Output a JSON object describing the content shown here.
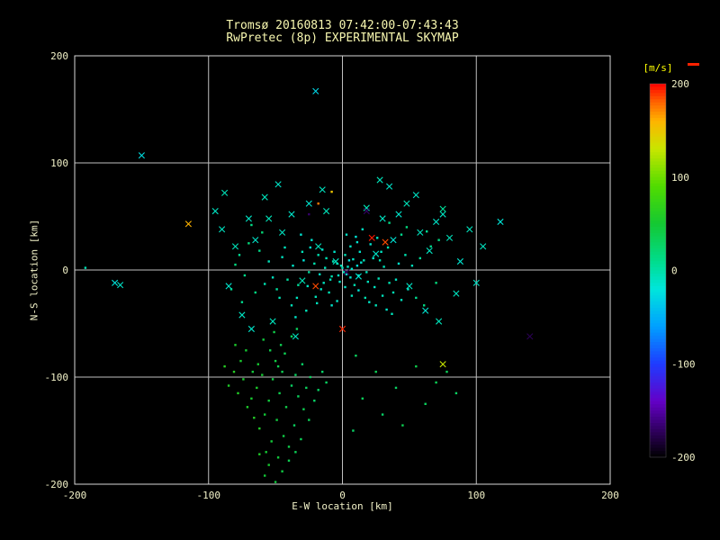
{
  "colors": {
    "background": "#000000",
    "frame": "#d9d9d9",
    "grid": "#bfbfbf",
    "text": "#f2f2c8",
    "title": "#f8f8b0",
    "unit_label": "#ffff00",
    "red_marker": "#ff2200"
  },
  "chart_data": {
    "type": "scatter",
    "title": "Tromsø 20160813 07:42:00-07:43:43",
    "subtitle": "RwPretec (8p) EXPERIMENTAL SKYMAP",
    "xlabel": "E-W location [km]",
    "ylabel": "N-S location [km]",
    "xlim": [
      -200,
      200
    ],
    "ylim": [
      -200,
      200
    ],
    "xticks": [
      -200,
      -100,
      0,
      100,
      200
    ],
    "yticks": [
      -200,
      -100,
      0,
      100,
      200
    ],
    "grid": true,
    "marker_codes": {
      "0": "dot",
      "1": "cross"
    },
    "colorbar": {
      "label": "[m/s]",
      "ticks": [
        200,
        100,
        0,
        -100,
        -200
      ],
      "vmin": -200,
      "vmax": 200,
      "stops": [
        [
          -200,
          "#000000"
        ],
        [
          -140,
          "#6400c8"
        ],
        [
          -100,
          "#1e3cff"
        ],
        [
          -60,
          "#00a0ff"
        ],
        [
          -20,
          "#00e6dc"
        ],
        [
          10,
          "#00dc8c"
        ],
        [
          50,
          "#14c832"
        ],
        [
          90,
          "#50dc00"
        ],
        [
          130,
          "#c8e600"
        ],
        [
          160,
          "#ffb400"
        ],
        [
          180,
          "#ff6400"
        ],
        [
          200,
          "#ff0000"
        ]
      ]
    },
    "points": [
      [
        0,
        2,
        -8,
        0
      ],
      [
        3,
        -4,
        -12,
        0
      ],
      [
        -4,
        6,
        -5,
        0
      ],
      [
        7,
        1,
        -15,
        0
      ],
      [
        -8,
        -6,
        -3,
        0
      ],
      [
        11,
        4,
        -18,
        0
      ],
      [
        -13,
        2,
        -7,
        0
      ],
      [
        5,
        9,
        -22,
        0
      ],
      [
        -2,
        -11,
        -9,
        0
      ],
      [
        9,
        -14,
        -4,
        0
      ],
      [
        14,
        7,
        -16,
        0
      ],
      [
        -17,
        -4,
        -11,
        0
      ],
      [
        2,
        14,
        -6,
        0
      ],
      [
        -6,
        17,
        -13,
        0
      ],
      [
        18,
        -2,
        -8,
        0
      ],
      [
        -21,
        6,
        -2,
        0
      ],
      [
        12,
        -19,
        -17,
        0
      ],
      [
        -10,
        -21,
        -5,
        0
      ],
      [
        23,
        11,
        -12,
        0
      ],
      [
        -25,
        -2,
        3,
        0
      ],
      [
        6,
        22,
        -9,
        0
      ],
      [
        -15,
        19,
        -14,
        0
      ],
      [
        27,
        -8,
        -6,
        0
      ],
      [
        -29,
        9,
        -19,
        0
      ],
      [
        17,
        -26,
        -3,
        0
      ],
      [
        -4,
        -29,
        -11,
        0
      ],
      [
        31,
        3,
        -7,
        0
      ],
      [
        -33,
        -14,
        5,
        0
      ],
      [
        21,
        24,
        -15,
        0
      ],
      [
        -19,
        -31,
        -8,
        0
      ],
      [
        35,
        -12,
        -4,
        0
      ],
      [
        -37,
        4,
        -13,
        0
      ],
      [
        10,
        31,
        -18,
        0
      ],
      [
        25,
        -33,
        -6,
        0
      ],
      [
        -41,
        -9,
        2,
        0
      ],
      [
        29,
        17,
        -10,
        0
      ],
      [
        -23,
        28,
        -16,
        0
      ],
      [
        38,
        -21,
        -5,
        0
      ],
      [
        -45,
        12,
        -9,
        0
      ],
      [
        33,
        -37,
        -12,
        0
      ],
      [
        -27,
        -38,
        -7,
        0
      ],
      [
        42,
        6,
        -14,
        0
      ],
      [
        -49,
        -18,
        4,
        0
      ],
      [
        15,
        38,
        -11,
        0
      ],
      [
        44,
        -28,
        -8,
        0
      ],
      [
        -31,
        33,
        -15,
        0
      ],
      [
        47,
        14,
        -3,
        0
      ],
      [
        -52,
        -7,
        -10,
        0
      ],
      [
        37,
        -41,
        -6,
        0
      ],
      [
        -35,
        -44,
        -13,
        0
      ],
      [
        1,
        -2,
        -9,
        0
      ],
      [
        -1,
        4,
        -6,
        0
      ],
      [
        4,
        3,
        -11,
        0
      ],
      [
        -3,
        -5,
        -8,
        0
      ],
      [
        6,
        -7,
        -14,
        0
      ],
      [
        -7,
        8,
        -4,
        0
      ],
      [
        8,
        10,
        -12,
        0
      ],
      [
        -9,
        -9,
        -7,
        0
      ],
      [
        12,
        -5,
        -10,
        0
      ],
      [
        -12,
        11,
        -5,
        0
      ],
      [
        2,
        -16,
        -13,
        0
      ],
      [
        -14,
        -12,
        -9,
        0
      ],
      [
        16,
        9,
        -6,
        0
      ],
      [
        -16,
        -18,
        -11,
        0
      ],
      [
        19,
        -11,
        -8,
        0
      ],
      [
        -18,
        14,
        -3,
        0
      ],
      [
        13,
        17,
        -12,
        0
      ],
      [
        -20,
        -25,
        -6,
        0
      ],
      [
        24,
        -16,
        -9,
        0
      ],
      [
        -24,
        21,
        -14,
        0
      ],
      [
        7,
        -24,
        -7,
        0
      ],
      [
        -26,
        -15,
        -10,
        0
      ],
      [
        28,
        9,
        -5,
        0
      ],
      [
        -8,
        -33,
        -12,
        0
      ],
      [
        30,
        -24,
        -8,
        0
      ],
      [
        -30,
        17,
        -6,
        0
      ],
      [
        20,
        -30,
        -11,
        0
      ],
      [
        -34,
        -26,
        -9,
        0
      ],
      [
        34,
        21,
        -4,
        0
      ],
      [
        -38,
        -33,
        -7,
        0
      ],
      [
        11,
        26,
        -15,
        0
      ],
      [
        -43,
        21,
        -8,
        0
      ],
      [
        40,
        -9,
        -11,
        0
      ],
      [
        -47,
        -26,
        -5,
        0
      ],
      [
        26,
        30,
        -9,
        0
      ],
      [
        3,
        33,
        -13,
        0
      ],
      [
        -55,
        8,
        -7,
        0
      ],
      [
        49,
        -18,
        -10,
        0
      ],
      [
        -58,
        -13,
        -4,
        0
      ],
      [
        52,
        4,
        -8,
        0
      ],
      [
        -62,
        18,
        12,
        0
      ],
      [
        55,
        -26,
        8,
        0
      ],
      [
        -65,
        -21,
        15,
        0
      ],
      [
        58,
        11,
        6,
        0
      ],
      [
        -70,
        25,
        18,
        0
      ],
      [
        44,
        33,
        9,
        0
      ],
      [
        -73,
        -5,
        11,
        0
      ],
      [
        61,
        -33,
        14,
        0
      ],
      [
        -77,
        14,
        7,
        0
      ],
      [
        48,
        40,
        16,
        0
      ],
      [
        -60,
        35,
        20,
        0
      ],
      [
        66,
        22,
        10,
        0
      ],
      [
        -68,
        42,
        13,
        0
      ],
      [
        70,
        -12,
        17,
        0
      ],
      [
        -75,
        -30,
        9,
        0
      ],
      [
        35,
        44,
        12,
        0
      ],
      [
        -80,
        5,
        15,
        0
      ],
      [
        63,
        36,
        8,
        0
      ],
      [
        -83,
        -18,
        11,
        0
      ],
      [
        72,
        28,
        14,
        0
      ],
      [
        -45,
        -95,
        35,
        0
      ],
      [
        -52,
        -102,
        42,
        0
      ],
      [
        -38,
        -108,
        28,
        0
      ],
      [
        -60,
        -98,
        50,
        0
      ],
      [
        -47,
        -115,
        38,
        0
      ],
      [
        -55,
        -122,
        45,
        0
      ],
      [
        -33,
        -118,
        32,
        0
      ],
      [
        -64,
        -110,
        55,
        0
      ],
      [
        -42,
        -128,
        40,
        0
      ],
      [
        -58,
        -135,
        48,
        0
      ],
      [
        -29,
        -130,
        36,
        0
      ],
      [
        -68,
        -120,
        52,
        0
      ],
      [
        -49,
        -140,
        44,
        0
      ],
      [
        -36,
        -145,
        30,
        0
      ],
      [
        -62,
        -148,
        58,
        0
      ],
      [
        -44,
        -155,
        41,
        0
      ],
      [
        -53,
        -160,
        47,
        0
      ],
      [
        -31,
        -158,
        34,
        0
      ],
      [
        -66,
        -138,
        60,
        0
      ],
      [
        -40,
        -165,
        39,
        0
      ],
      [
        -57,
        -170,
        49,
        0
      ],
      [
        -25,
        -140,
        33,
        0
      ],
      [
        -71,
        -128,
        56,
        0
      ],
      [
        -48,
        -90,
        37,
        0
      ],
      [
        -35,
        -98,
        29,
        0
      ],
      [
        -63,
        -88,
        51,
        0
      ],
      [
        -27,
        -110,
        31,
        0
      ],
      [
        -74,
        -102,
        54,
        0
      ],
      [
        -50,
        -85,
        43,
        0
      ],
      [
        -21,
        -122,
        27,
        0
      ],
      [
        -78,
        -115,
        59,
        0
      ],
      [
        -43,
        -78,
        35,
        0
      ],
      [
        -67,
        -95,
        46,
        0
      ],
      [
        -30,
        -88,
        26,
        0
      ],
      [
        -81,
        -95,
        61,
        0
      ],
      [
        -54,
        -75,
        38,
        0
      ],
      [
        -24,
        -100,
        30,
        0
      ],
      [
        -76,
        -85,
        53,
        0
      ],
      [
        -46,
        -70,
        36,
        0
      ],
      [
        -18,
        -112,
        28,
        0
      ],
      [
        -85,
        -108,
        57,
        0
      ],
      [
        -59,
        -65,
        44,
        0
      ],
      [
        -15,
        -95,
        25,
        0
      ],
      [
        -72,
        -75,
        50,
        0
      ],
      [
        -38,
        -62,
        33,
        0
      ],
      [
        -88,
        -90,
        62,
        0
      ],
      [
        -51,
        -58,
        40,
        0
      ],
      [
        -12,
        -105,
        29,
        0
      ],
      [
        -80,
        -70,
        55,
        0
      ],
      [
        -34,
        -55,
        31,
        0
      ],
      [
        -48,
        -175,
        45,
        0
      ],
      [
        -55,
        -182,
        52,
        0
      ],
      [
        -40,
        -178,
        37,
        0
      ],
      [
        -62,
        -172,
        58,
        0
      ],
      [
        -45,
        -188,
        42,
        0
      ],
      [
        -35,
        -170,
        34,
        0
      ],
      [
        -58,
        -192,
        48,
        0
      ],
      [
        -50,
        -198,
        44,
        0
      ],
      [
        10,
        -80,
        30,
        0
      ],
      [
        25,
        -95,
        35,
        0
      ],
      [
        40,
        -110,
        28,
        0
      ],
      [
        15,
        -120,
        32,
        0
      ],
      [
        55,
        -90,
        38,
        0
      ],
      [
        30,
        -135,
        26,
        0
      ],
      [
        70,
        -105,
        34,
        0
      ],
      [
        62,
        -125,
        31,
        0
      ],
      [
        45,
        -145,
        36,
        0
      ],
      [
        8,
        -150,
        27,
        0
      ],
      [
        78,
        -95,
        33,
        0
      ],
      [
        85,
        -115,
        29,
        0
      ],
      [
        -5,
        8,
        -10,
        1
      ],
      [
        12,
        -6,
        -15,
        1
      ],
      [
        -18,
        22,
        -8,
        1
      ],
      [
        25,
        15,
        -12,
        1
      ],
      [
        -30,
        -10,
        -5,
        1
      ],
      [
        38,
        28,
        -18,
        1
      ],
      [
        -45,
        35,
        -9,
        1
      ],
      [
        50,
        -15,
        -11,
        1
      ],
      [
        -55,
        48,
        -6,
        1
      ],
      [
        42,
        52,
        -14,
        1
      ],
      [
        -12,
        55,
        -7,
        1
      ],
      [
        30,
        48,
        -10,
        1
      ],
      [
        -65,
        28,
        -12,
        1
      ],
      [
        58,
        35,
        -8,
        1
      ],
      [
        -25,
        62,
        -15,
        1
      ],
      [
        18,
        58,
        -5,
        1
      ],
      [
        -70,
        48,
        -11,
        1
      ],
      [
        65,
        18,
        -9,
        1
      ],
      [
        -38,
        52,
        -13,
        1
      ],
      [
        48,
        62,
        -7,
        1
      ],
      [
        -75,
        -42,
        -10,
        1
      ],
      [
        70,
        45,
        -12,
        1
      ],
      [
        -52,
        -48,
        -8,
        1
      ],
      [
        62,
        -38,
        -15,
        1
      ],
      [
        -80,
        22,
        -6,
        1
      ],
      [
        55,
        70,
        -11,
        1
      ],
      [
        -15,
        75,
        -9,
        1
      ],
      [
        35,
        78,
        -13,
        1
      ],
      [
        -58,
        68,
        -7,
        1
      ],
      [
        75,
        52,
        -10,
        1
      ],
      [
        -85,
        -15,
        -14,
        1
      ],
      [
        80,
        30,
        -8,
        1
      ],
      [
        -48,
        80,
        -12,
        1
      ],
      [
        28,
        84,
        -6,
        1
      ],
      [
        -90,
        38,
        -10,
        1
      ],
      [
        85,
        -22,
        -9,
        1
      ],
      [
        -68,
        -55,
        -13,
        1
      ],
      [
        72,
        -48,
        -7,
        1
      ],
      [
        -35,
        -62,
        -11,
        1
      ],
      [
        88,
        8,
        -15,
        1
      ],
      [
        95,
        38,
        -8,
        1
      ],
      [
        -95,
        55,
        -10,
        1
      ],
      [
        100,
        -12,
        -12,
        1
      ],
      [
        -88,
        72,
        -6,
        1
      ],
      [
        105,
        22,
        -9,
        1
      ],
      [
        118,
        45,
        -18,
        1
      ],
      [
        -170,
        -12,
        -20,
        1
      ],
      [
        -150,
        107,
        -25,
        1
      ],
      [
        -20,
        167,
        -30,
        1
      ],
      [
        75,
        57,
        5,
        1
      ],
      [
        -115,
        43,
        160,
        1
      ],
      [
        75,
        -88,
        130,
        1
      ],
      [
        22,
        30,
        195,
        1
      ],
      [
        32,
        26,
        185,
        1
      ],
      [
        -20,
        -15,
        185,
        1
      ],
      [
        0,
        -55,
        192,
        1
      ],
      [
        -18,
        62,
        175,
        0
      ],
      [
        -8,
        73,
        150,
        0
      ],
      [
        18,
        55,
        -170,
        1
      ],
      [
        3,
        -2,
        -172,
        1
      ],
      [
        140,
        -62,
        -175,
        1
      ],
      [
        -25,
        52,
        -168,
        0
      ],
      [
        -192,
        2,
        -5,
        0
      ],
      [
        -166,
        -14,
        -12,
        1
      ]
    ]
  }
}
